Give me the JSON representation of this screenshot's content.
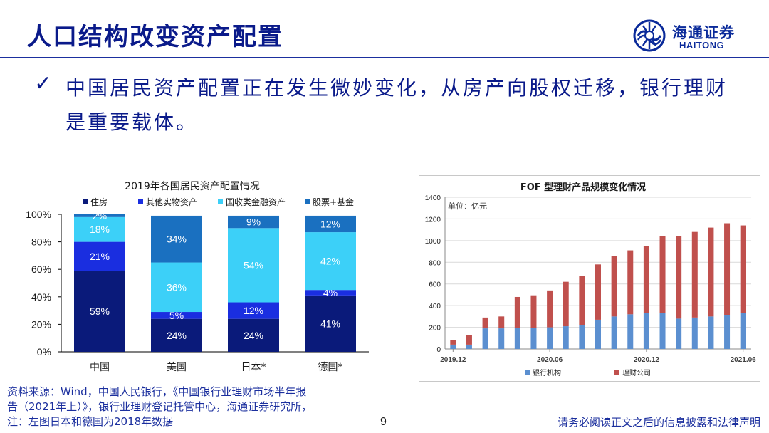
{
  "slide": {
    "title": "人口结构改变资产配置",
    "bullet": "中国居民资产配置正在发生微妙变化，从房产向股权迁移，银行理财是重要载体。",
    "page_number": "9",
    "disclaimer": "请务必阅读正文之后的信息披露和法律声明",
    "source_lines": [
      "资料来源：Wind，中国人民银行，《中国银行业理财市场半年报",
      "告（2021年上）》，银行业理财登记托管中心，海通证券研究所，",
      "注：左图日本和德国为2018年数据"
    ]
  },
  "logo": {
    "name_cn": "海通证券",
    "name_en": "HAITONG",
    "icon": "haitong-logo-icon",
    "color": "#0a2a9a"
  },
  "chart_data": [
    {
      "type": "bar",
      "stacked": "percent",
      "title": "2019年各国居民资产配置情况",
      "categories": [
        "中国",
        "美国",
        "日本*",
        "德国*"
      ],
      "series": [
        {
          "name": "住房",
          "color": "#0a1a7a",
          "values": [
            59,
            24,
            24,
            41
          ],
          "labels": [
            "59%",
            "24%",
            "24%",
            "41%"
          ]
        },
        {
          "name": "其他实物资产",
          "color": "#1a2ee0",
          "values": [
            21,
            5,
            12,
            4
          ],
          "labels": [
            "21%",
            "5%",
            "12%",
            "4%"
          ]
        },
        {
          "name": "国收类金融资产",
          "color": "#3cd0f8",
          "values": [
            18,
            36,
            54,
            42
          ],
          "labels": [
            "18%",
            "36%",
            "54%",
            "42%"
          ]
        },
        {
          "name": "股票+基金",
          "color": "#1a70c0",
          "values": [
            2,
            34,
            9,
            12
          ],
          "labels": [
            "2%",
            "34%",
            "9%",
            "12%"
          ]
        }
      ],
      "yticks": [
        "0%",
        "20%",
        "40%",
        "60%",
        "80%",
        "100%"
      ],
      "ylim": [
        0,
        100
      ],
      "legend": "top",
      "grid": false
    },
    {
      "type": "bar",
      "stacked": true,
      "title": "FOF 型理财产品规模变化情况",
      "unit_note": "单位：亿元",
      "x_tick_labels": [
        "2019.12",
        "2020.06",
        "2020.12",
        "2021.06"
      ],
      "x_tick_positions": [
        0,
        6,
        12,
        18
      ],
      "series": [
        {
          "name": "银行机构",
          "color": "#5b8fd0",
          "values": [
            40,
            40,
            190,
            190,
            195,
            195,
            200,
            210,
            220,
            270,
            300,
            320,
            330,
            330,
            280,
            290,
            300,
            310,
            330
          ]
        },
        {
          "name": "理财公司",
          "color": "#c0504d",
          "values": [
            40,
            90,
            100,
            110,
            285,
            300,
            340,
            410,
            455,
            510,
            560,
            590,
            620,
            710,
            760,
            790,
            820,
            850,
            810
          ]
        }
      ],
      "ylim": [
        0,
        1400
      ],
      "yticks": [
        "0",
        "200",
        "400",
        "600",
        "800",
        "1000",
        "1200",
        "1400"
      ],
      "legend": "bottom",
      "grid": true
    }
  ]
}
